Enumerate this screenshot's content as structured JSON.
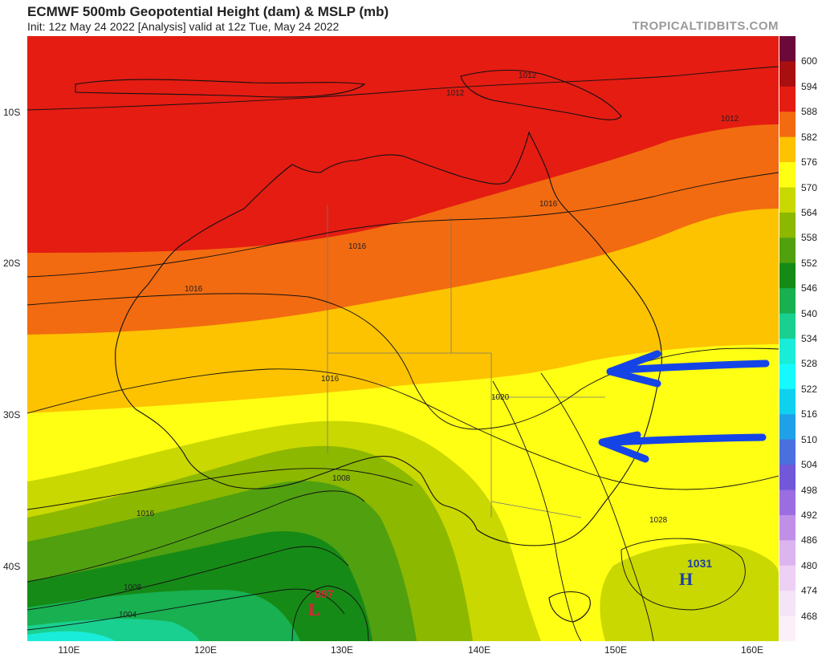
{
  "header": {
    "title": "ECMWF 500mb Geopotential Height (dam) & MSLP (mb)",
    "subtitle": "Init: 12z May 24 2022   [Analysis]   valid at 12z Tue, May 24 2022",
    "credit": "TROPICALTIDBITS.COM"
  },
  "axes": {
    "lat_labels": [
      "10S",
      "20S",
      "30S",
      "40S"
    ],
    "lon_labels": [
      "110E",
      "120E",
      "130E",
      "140E",
      "150E",
      "160E"
    ]
  },
  "legend": {
    "levels": [
      "600",
      "594",
      "588",
      "582",
      "576",
      "570",
      "564",
      "558",
      "552",
      "546",
      "540",
      "534",
      "528",
      "522",
      "516",
      "510",
      "504",
      "498",
      "492",
      "486",
      "480",
      "474",
      "468"
    ],
    "colors": [
      "#6b0a3a",
      "#a81010",
      "#e41c12",
      "#f26b10",
      "#fdc200",
      "#ffff14",
      "#c9d800",
      "#8cb800",
      "#50a010",
      "#168a16",
      "#18b050",
      "#1ad090",
      "#19ecd8",
      "#16faff",
      "#10d0f0",
      "#20a0e8",
      "#4a70e0",
      "#7058d8",
      "#9a6ee0",
      "#c090e8",
      "#dcb4f0",
      "#eed0f5",
      "#f4e4f7",
      "#fbeff9"
    ]
  },
  "isobar_labels": [
    {
      "text": "1012"
    },
    {
      "text": "1012"
    },
    {
      "text": "1012"
    },
    {
      "text": "1016"
    },
    {
      "text": "1016"
    },
    {
      "text": "1016"
    },
    {
      "text": "1016"
    },
    {
      "text": "1016"
    },
    {
      "text": "1020"
    },
    {
      "text": "1028"
    },
    {
      "text": "1008"
    },
    {
      "text": "1008"
    },
    {
      "text": "1004"
    }
  ],
  "pressure_centers": [
    {
      "value": "997",
      "letter": "L",
      "color": "#e0203a"
    },
    {
      "value": "1031",
      "letter": "H",
      "color": "#1d3fa8"
    }
  ],
  "annotation_color": "#1544e6"
}
